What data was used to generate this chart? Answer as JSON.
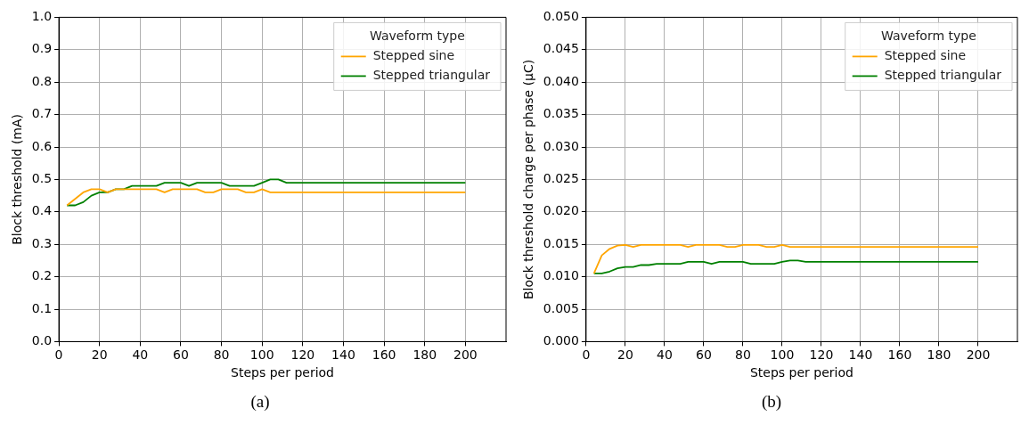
{
  "chart_data": [
    {
      "type": "line",
      "xlabel": "Steps per period",
      "ylabel": "Block threshold (mA)",
      "legend_title": "Waveform type",
      "legend": "top right",
      "grid": true,
      "xlim": [
        0,
        220
      ],
      "xticks": [
        0,
        20,
        40,
        60,
        80,
        100,
        120,
        140,
        160,
        180,
        200
      ],
      "ylim": [
        0,
        1
      ],
      "yticks": [
        {
          "value": 0,
          "label": "0.0"
        },
        0.1,
        0.2,
        0.3,
        0.4,
        0.5,
        0.6,
        0.7,
        0.8,
        0.9,
        {
          "value": 1,
          "label": "1.0"
        }
      ],
      "annotations": [
        "(a)"
      ],
      "x": [
        4,
        8,
        12,
        16,
        20,
        24,
        28,
        32,
        36,
        40,
        44,
        48,
        52,
        56,
        60,
        64,
        68,
        72,
        76,
        80,
        84,
        88,
        92,
        96,
        100,
        104,
        108,
        112,
        116,
        120,
        124,
        128,
        132,
        136,
        140,
        144,
        148,
        152,
        156,
        160,
        164,
        168,
        172,
        176,
        180,
        184,
        188,
        192,
        196,
        200
      ],
      "series": [
        {
          "name": "Stepped sine",
          "color": "#ffa500",
          "values": [
            0.42,
            0.44,
            0.46,
            0.47,
            0.47,
            0.46,
            0.47,
            0.47,
            0.47,
            0.47,
            0.47,
            0.47,
            0.46,
            0.47,
            0.47,
            0.47,
            0.47,
            0.46,
            0.46,
            0.47,
            0.47,
            0.47,
            0.46,
            0.46,
            0.47,
            0.46,
            0.46,
            0.46,
            0.46,
            0.46,
            0.46,
            0.46,
            0.46,
            0.46,
            0.46,
            0.46,
            0.46,
            0.46,
            0.46,
            0.46,
            0.46,
            0.46,
            0.46,
            0.46,
            0.46,
            0.46,
            0.46,
            0.46,
            0.46,
            0.46
          ]
        },
        {
          "name": "Stepped triangular",
          "color": "#008000",
          "values": [
            0.42,
            0.42,
            0.43,
            0.45,
            0.46,
            0.46,
            0.47,
            0.47,
            0.48,
            0.48,
            0.48,
            0.48,
            0.49,
            0.49,
            0.49,
            0.48,
            0.49,
            0.49,
            0.49,
            0.49,
            0.48,
            0.48,
            0.48,
            0.48,
            0.49,
            0.5,
            0.5,
            0.49,
            0.49,
            0.49,
            0.49,
            0.49,
            0.49,
            0.49,
            0.49,
            0.49,
            0.49,
            0.49,
            0.49,
            0.49,
            0.49,
            0.49,
            0.49,
            0.49,
            0.49,
            0.49,
            0.49,
            0.49,
            0.49,
            0.49
          ]
        }
      ]
    },
    {
      "type": "line",
      "xlabel": "Steps per period",
      "ylabel": "Block threshold charge per phase (μC)",
      "legend_title": "Waveform type",
      "legend": "top right",
      "grid": true,
      "xlim": [
        0,
        220
      ],
      "xticks": [
        0,
        20,
        40,
        60,
        80,
        100,
        120,
        140,
        160,
        180,
        200
      ],
      "ylim": [
        0,
        0.05
      ],
      "yticks": [
        {
          "value": 0,
          "label": "0.000"
        },
        0.005,
        {
          "value": 0.01,
          "label": "0.010"
        },
        0.015,
        {
          "value": 0.02,
          "label": "0.020"
        },
        0.025,
        {
          "value": 0.03,
          "label": "0.030"
        },
        0.035,
        {
          "value": 0.04,
          "label": "0.040"
        },
        0.045,
        {
          "value": 0.05,
          "label": "0.050"
        }
      ],
      "annotations": [
        "(b)"
      ],
      "x": [
        4,
        8,
        12,
        16,
        20,
        24,
        28,
        32,
        36,
        40,
        44,
        48,
        52,
        56,
        60,
        64,
        68,
        72,
        76,
        80,
        84,
        88,
        92,
        96,
        100,
        104,
        108,
        112,
        116,
        120,
        124,
        128,
        132,
        136,
        140,
        144,
        148,
        152,
        156,
        160,
        164,
        168,
        172,
        176,
        180,
        184,
        188,
        192,
        196,
        200
      ],
      "series": [
        {
          "name": "Stepped sine",
          "color": "#ffa500",
          "values": [
            0.0105,
            0.0133,
            0.0143,
            0.0148,
            0.0149,
            0.0146,
            0.0149,
            0.0149,
            0.0149,
            0.0149,
            0.0149,
            0.0149,
            0.0146,
            0.0149,
            0.0149,
            0.0149,
            0.0149,
            0.0146,
            0.0146,
            0.0149,
            0.0149,
            0.0149,
            0.0146,
            0.0146,
            0.0149,
            0.0146,
            0.0146,
            0.0146,
            0.0146,
            0.0146,
            0.0146,
            0.0146,
            0.0146,
            0.0146,
            0.0146,
            0.0146,
            0.0146,
            0.0146,
            0.0146,
            0.0146,
            0.0146,
            0.0146,
            0.0146,
            0.0146,
            0.0146,
            0.0146,
            0.0146,
            0.0146,
            0.0146,
            0.0146
          ]
        },
        {
          "name": "Stepped triangular",
          "color": "#008000",
          "values": [
            0.0105,
            0.0105,
            0.0108,
            0.0113,
            0.0115,
            0.0115,
            0.0118,
            0.0118,
            0.012,
            0.012,
            0.012,
            0.012,
            0.0123,
            0.0123,
            0.0123,
            0.012,
            0.0123,
            0.0123,
            0.0123,
            0.0123,
            0.012,
            0.012,
            0.012,
            0.012,
            0.0123,
            0.0125,
            0.0125,
            0.0123,
            0.0123,
            0.0123,
            0.0123,
            0.0123,
            0.0123,
            0.0123,
            0.0123,
            0.0123,
            0.0123,
            0.0123,
            0.0123,
            0.0123,
            0.0123,
            0.0123,
            0.0123,
            0.0123,
            0.0123,
            0.0123,
            0.0123,
            0.0123,
            0.0123,
            0.0123
          ]
        }
      ]
    }
  ]
}
